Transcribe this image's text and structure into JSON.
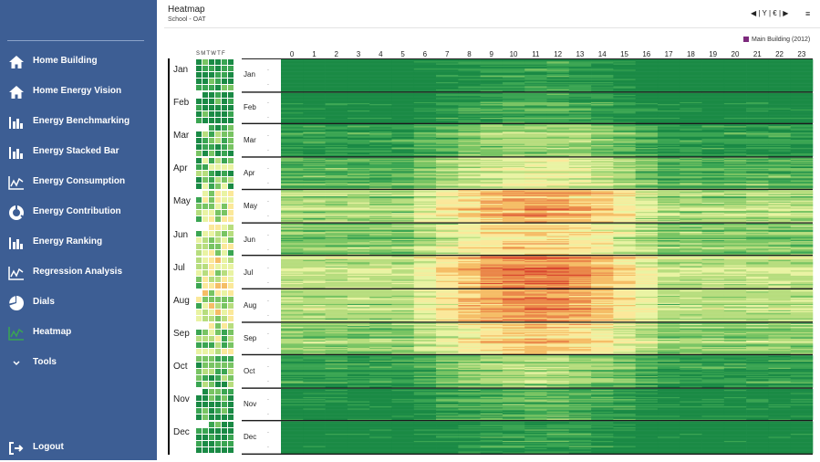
{
  "sidebar": {
    "items": [
      {
        "label": "Home Building",
        "icon": "home-icon"
      },
      {
        "label": "Home Energy Vision",
        "icon": "home-icon"
      },
      {
        "label": "Energy Benchmarking",
        "icon": "bar-chart-icon"
      },
      {
        "label": "Energy Stacked Bar",
        "icon": "bar-chart-icon"
      },
      {
        "label": "Energy Consumption",
        "icon": "line-chart-icon"
      },
      {
        "label": "Energy Contribution",
        "icon": "donut-chart-icon"
      },
      {
        "label": "Energy Ranking",
        "icon": "bar-chart-icon"
      },
      {
        "label": "Regression Analysis",
        "icon": "line-chart-icon"
      },
      {
        "label": "Dials",
        "icon": "pie-chart-icon"
      },
      {
        "label": "Heatmap",
        "icon": "heatmap-icon"
      },
      {
        "label": "Tools",
        "icon": "chevron-down-icon"
      }
    ],
    "logout_label": "Logout",
    "active_item": "Heatmap"
  },
  "header": {
    "title": "Heatmap",
    "subtitle": "School - OAT",
    "controls": {
      "prev": "◀",
      "y": "Y",
      "euro": "€",
      "next": "▶",
      "sep": "|",
      "menu": "≡"
    }
  },
  "legend": {
    "label": "Main Building (2012)",
    "color": "#7d2a7d"
  },
  "calendar": {
    "weekday_header": "SMTWTF",
    "months": [
      "Jan",
      "Feb",
      "Mar",
      "Apr",
      "May",
      "Jun",
      "Jul",
      "Aug",
      "Sep",
      "Oct",
      "Nov",
      "Dec"
    ]
  },
  "colors": {
    "sidebar_bg": "#3d5e94",
    "scale": [
      "#1a8a45",
      "#3aa552",
      "#78c463",
      "#b7dd7e",
      "#e9f3a3",
      "#fbe89a",
      "#f5bd66",
      "#ea8648",
      "#d9472f"
    ]
  },
  "chart_data": {
    "type": "heatmap",
    "x_label_values": [
      "0",
      "1",
      "2",
      "3",
      "4",
      "5",
      "6",
      "7",
      "8",
      "9",
      "10",
      "11",
      "12",
      "13",
      "14",
      "15",
      "16",
      "17",
      "18",
      "19",
      "20",
      "21",
      "22",
      "23"
    ],
    "y_label_values": [
      "Jan",
      "Feb",
      "Mar",
      "Apr",
      "May",
      "Jun",
      "Jul",
      "Aug",
      "Sep",
      "Oct",
      "Nov",
      "Dec"
    ],
    "hour_columns": 24,
    "rows_per_month": [
      31,
      29,
      31,
      30,
      31,
      30,
      31,
      31,
      30,
      31,
      30,
      31
    ],
    "color_scale_low": "#1a8a45",
    "color_scale_high": "#d9472f"
  }
}
